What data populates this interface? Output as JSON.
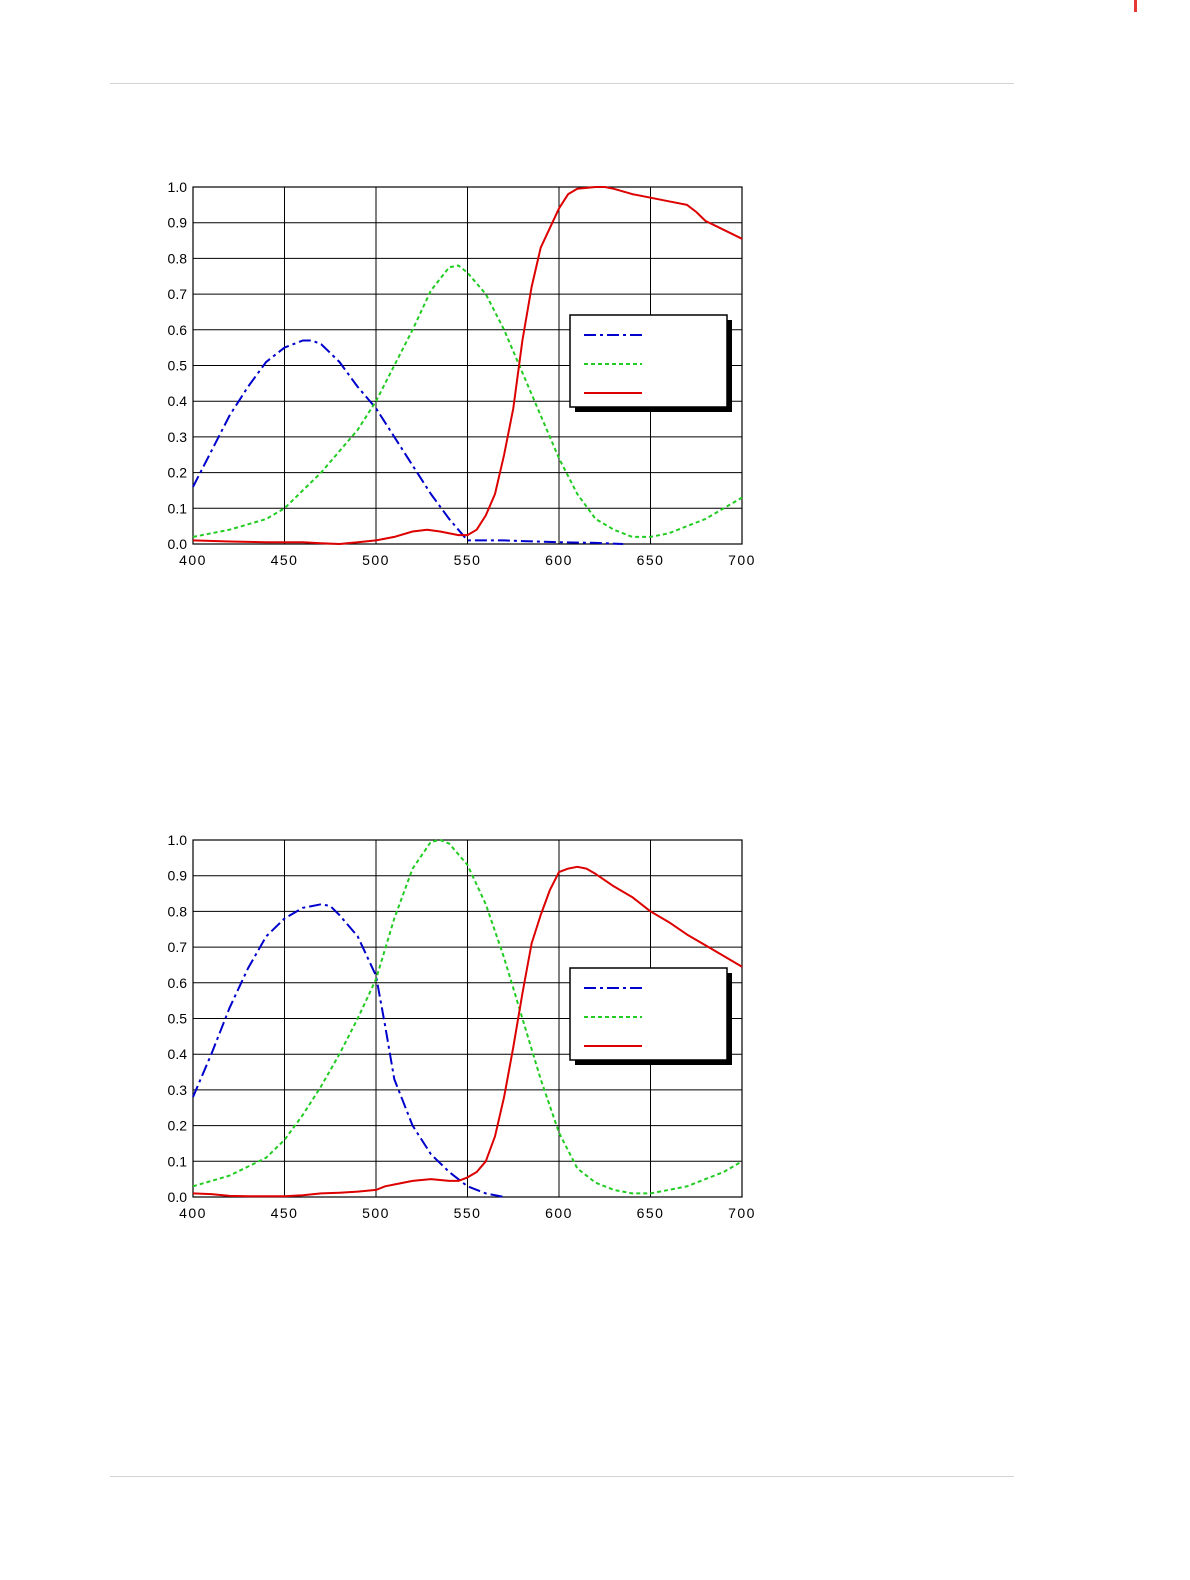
{
  "chart_data": [
    {
      "type": "line",
      "xlim": [
        400,
        700
      ],
      "ylim": [
        0.0,
        1.0
      ],
      "x_ticks": [
        "400",
        "450",
        "500",
        "550",
        "600",
        "650",
        "700"
      ],
      "y_ticks": [
        "0.0",
        "0.1",
        "0.2",
        "0.3",
        "0.4",
        "0.5",
        "0.6",
        "0.7",
        "0.8",
        "0.9",
        "1.0"
      ],
      "grid": true,
      "legend": "right",
      "series": [
        {
          "color": "#0000cc",
          "style": "dash-dot",
          "points": [
            [
              400,
              0.16
            ],
            [
              410,
              0.26
            ],
            [
              420,
              0.36
            ],
            [
              430,
              0.44
            ],
            [
              440,
              0.51
            ],
            [
              450,
              0.55
            ],
            [
              460,
              0.57
            ],
            [
              465,
              0.57
            ],
            [
              470,
              0.56
            ],
            [
              480,
              0.51
            ],
            [
              490,
              0.44
            ],
            [
              500,
              0.38
            ],
            [
              510,
              0.3
            ],
            [
              520,
              0.22
            ],
            [
              530,
              0.14
            ],
            [
              540,
              0.07
            ],
            [
              550,
              0.01
            ],
            [
              560,
              0.01
            ],
            [
              570,
              0.01
            ],
            [
              580,
              0.008
            ],
            [
              600,
              0.005
            ],
            [
              620,
              0.003
            ],
            [
              635,
              0.0
            ]
          ]
        },
        {
          "color": "#22cc22",
          "style": "dotted",
          "points": [
            [
              400,
              0.02
            ],
            [
              420,
              0.04
            ],
            [
              440,
              0.07
            ],
            [
              450,
              0.1
            ],
            [
              460,
              0.15
            ],
            [
              470,
              0.2
            ],
            [
              480,
              0.26
            ],
            [
              490,
              0.32
            ],
            [
              500,
              0.4
            ],
            [
              510,
              0.5
            ],
            [
              520,
              0.6
            ],
            [
              530,
              0.71
            ],
            [
              540,
              0.775
            ],
            [
              545,
              0.78
            ],
            [
              550,
              0.76
            ],
            [
              560,
              0.7
            ],
            [
              570,
              0.6
            ],
            [
              580,
              0.48
            ],
            [
              590,
              0.36
            ],
            [
              600,
              0.24
            ],
            [
              610,
              0.14
            ],
            [
              620,
              0.07
            ],
            [
              630,
              0.04
            ],
            [
              640,
              0.02
            ],
            [
              650,
              0.02
            ],
            [
              660,
              0.03
            ],
            [
              670,
              0.05
            ],
            [
              680,
              0.07
            ],
            [
              690,
              0.1
            ],
            [
              700,
              0.13
            ]
          ]
        },
        {
          "color": "#dd0000",
          "style": "solid",
          "points": [
            [
              400,
              0.01
            ],
            [
              420,
              0.007
            ],
            [
              440,
              0.005
            ],
            [
              460,
              0.005
            ],
            [
              470,
              0.002
            ],
            [
              480,
              0.0
            ],
            [
              490,
              0.005
            ],
            [
              500,
              0.01
            ],
            [
              510,
              0.02
            ],
            [
              520,
              0.035
            ],
            [
              528,
              0.04
            ],
            [
              535,
              0.035
            ],
            [
              545,
              0.025
            ],
            [
              550,
              0.025
            ],
            [
              555,
              0.04
            ],
            [
              560,
              0.08
            ],
            [
              565,
              0.14
            ],
            [
              570,
              0.25
            ],
            [
              575,
              0.38
            ],
            [
              580,
              0.57
            ],
            [
              585,
              0.72
            ],
            [
              590,
              0.83
            ],
            [
              600,
              0.94
            ],
            [
              605,
              0.98
            ],
            [
              610,
              0.995
            ],
            [
              620,
              1.0
            ],
            [
              625,
              1.0
            ],
            [
              630,
              0.995
            ],
            [
              640,
              0.98
            ],
            [
              650,
              0.97
            ],
            [
              660,
              0.96
            ],
            [
              670,
              0.95
            ],
            [
              675,
              0.93
            ],
            [
              680,
              0.905
            ],
            [
              690,
              0.88
            ],
            [
              700,
              0.855
            ]
          ]
        }
      ]
    },
    {
      "type": "line",
      "xlim": [
        400,
        700
      ],
      "ylim": [
        0.0,
        1.0
      ],
      "x_ticks": [
        "400",
        "450",
        "500",
        "550",
        "600",
        "650",
        "700"
      ],
      "y_ticks": [
        "0.0",
        "0.1",
        "0.2",
        "0.3",
        "0.4",
        "0.5",
        "0.6",
        "0.7",
        "0.8",
        "0.9",
        "1.0"
      ],
      "grid": true,
      "legend": "right",
      "series": [
        {
          "color": "#0000cc",
          "style": "dash-dot",
          "points": [
            [
              400,
              0.28
            ],
            [
              410,
              0.4
            ],
            [
              420,
              0.53
            ],
            [
              430,
              0.64
            ],
            [
              440,
              0.73
            ],
            [
              450,
              0.78
            ],
            [
              460,
              0.81
            ],
            [
              470,
              0.82
            ],
            [
              475,
              0.815
            ],
            [
              480,
              0.79
            ],
            [
              490,
              0.73
            ],
            [
              500,
              0.62
            ],
            [
              505,
              0.48
            ],
            [
              510,
              0.33
            ],
            [
              520,
              0.2
            ],
            [
              530,
              0.12
            ],
            [
              540,
              0.07
            ],
            [
              550,
              0.03
            ],
            [
              560,
              0.01
            ],
            [
              570,
              0.0
            ]
          ]
        },
        {
          "color": "#22cc22",
          "style": "dotted",
          "points": [
            [
              400,
              0.03
            ],
            [
              420,
              0.06
            ],
            [
              440,
              0.11
            ],
            [
              450,
              0.16
            ],
            [
              460,
              0.23
            ],
            [
              470,
              0.31
            ],
            [
              480,
              0.4
            ],
            [
              490,
              0.5
            ],
            [
              500,
              0.61
            ],
            [
              510,
              0.78
            ],
            [
              520,
              0.92
            ],
            [
              530,
              0.995
            ],
            [
              535,
              1.0
            ],
            [
              540,
              0.99
            ],
            [
              550,
              0.93
            ],
            [
              560,
              0.82
            ],
            [
              570,
              0.67
            ],
            [
              580,
              0.5
            ],
            [
              590,
              0.33
            ],
            [
              600,
              0.18
            ],
            [
              610,
              0.08
            ],
            [
              620,
              0.04
            ],
            [
              630,
              0.02
            ],
            [
              640,
              0.01
            ],
            [
              650,
              0.01
            ],
            [
              660,
              0.02
            ],
            [
              670,
              0.03
            ],
            [
              680,
              0.05
            ],
            [
              690,
              0.07
            ],
            [
              700,
              0.1
            ]
          ]
        },
        {
          "color": "#dd0000",
          "style": "solid",
          "points": [
            [
              400,
              0.01
            ],
            [
              410,
              0.008
            ],
            [
              420,
              0.003
            ],
            [
              430,
              0.002
            ],
            [
              450,
              0.002
            ],
            [
              460,
              0.005
            ],
            [
              470,
              0.01
            ],
            [
              480,
              0.012
            ],
            [
              490,
              0.015
            ],
            [
              500,
              0.02
            ],
            [
              505,
              0.03
            ],
            [
              510,
              0.035
            ],
            [
              520,
              0.045
            ],
            [
              530,
              0.05
            ],
            [
              540,
              0.045
            ],
            [
              545,
              0.045
            ],
            [
              550,
              0.055
            ],
            [
              555,
              0.07
            ],
            [
              560,
              0.1
            ],
            [
              565,
              0.17
            ],
            [
              570,
              0.28
            ],
            [
              575,
              0.42
            ],
            [
              580,
              0.57
            ],
            [
              585,
              0.71
            ],
            [
              590,
              0.79
            ],
            [
              595,
              0.86
            ],
            [
              600,
              0.91
            ],
            [
              605,
              0.92
            ],
            [
              610,
              0.925
            ],
            [
              615,
              0.92
            ],
            [
              620,
              0.905
            ],
            [
              630,
              0.87
            ],
            [
              640,
              0.84
            ],
            [
              650,
              0.8
            ],
            [
              660,
              0.77
            ],
            [
              670,
              0.735
            ],
            [
              680,
              0.705
            ],
            [
              690,
              0.675
            ],
            [
              700,
              0.645
            ]
          ]
        }
      ]
    }
  ]
}
